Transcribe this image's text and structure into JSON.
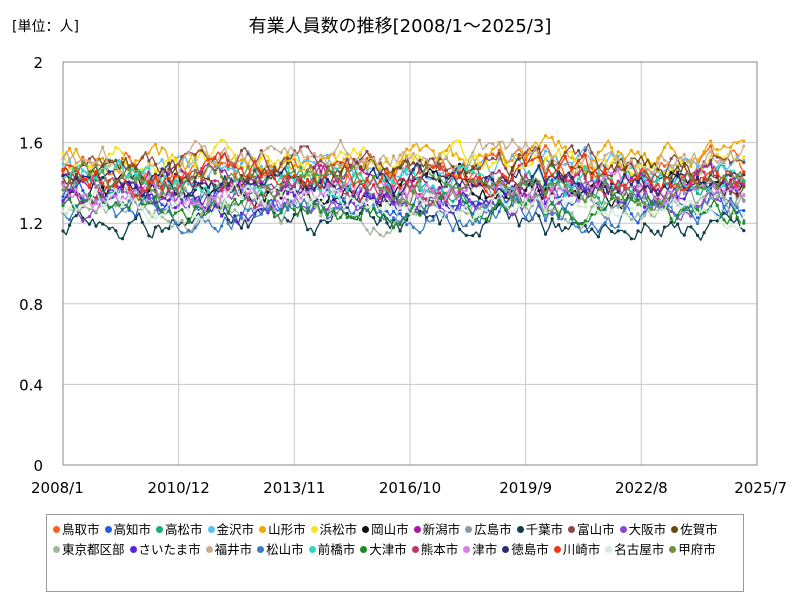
{
  "chart_data": {
    "type": "line",
    "title": "有業人員数の推移[2008/1～2025/3]",
    "unit_label": "[単位：人]",
    "ylim": [
      0,
      2
    ],
    "y_ticks": [
      "0",
      "0.4",
      "0.8",
      "1.2",
      "1.6",
      "2"
    ],
    "x_tick_labels": [
      "2008/1",
      "2010/12",
      "2013/11",
      "2016/10",
      "2019/9",
      "2022/8",
      "2025/7"
    ],
    "x_range": [
      "2008-01",
      "2025-07"
    ],
    "data_range": [
      "2008-01",
      "2025-03"
    ],
    "frequency": "monthly",
    "grid": true,
    "legend_position": "bottom",
    "series": [
      {
        "name": "鳥取市",
        "color": "#ff5e1a",
        "level": 1.46,
        "vol": 0.09
      },
      {
        "name": "高知市",
        "color": "#1f5fe0",
        "level": 1.33,
        "vol": 0.1
      },
      {
        "name": "高松市",
        "color": "#12b07a",
        "level": 1.38,
        "vol": 0.08
      },
      {
        "name": "金沢市",
        "color": "#5bc0ee",
        "level": 1.48,
        "vol": 0.11
      },
      {
        "name": "山形市",
        "color": "#f0a800",
        "level": 1.5,
        "vol": 0.1
      },
      {
        "name": "浜松市",
        "color": "#f5e21b",
        "level": 1.52,
        "vol": 0.1
      },
      {
        "name": "岡山市",
        "color": "#111111",
        "level": 1.36,
        "vol": 0.12
      },
      {
        "name": "新潟市",
        "color": "#a31aa8",
        "level": 1.4,
        "vol": 0.09
      },
      {
        "name": "広島市",
        "color": "#8e99a6",
        "level": 1.34,
        "vol": 0.09
      },
      {
        "name": "千葉市",
        "color": "#0e3e4a",
        "level": 1.2,
        "vol": 0.11
      },
      {
        "name": "富山市",
        "color": "#8b4a4a",
        "level": 1.5,
        "vol": 0.11
      },
      {
        "name": "大阪市",
        "color": "#8e44c8",
        "level": 1.33,
        "vol": 0.08
      },
      {
        "name": "佐賀市",
        "color": "#6a4a10",
        "level": 1.45,
        "vol": 0.09
      },
      {
        "name": "東京都区部",
        "color": "#9fb89a",
        "level": 1.27,
        "vol": 0.07
      },
      {
        "name": "さいたま市",
        "color": "#5a24d6",
        "level": 1.32,
        "vol": 0.09
      },
      {
        "name": "福井市",
        "color": "#c9ad8e",
        "level": 1.52,
        "vol": 0.1
      },
      {
        "name": "松山市",
        "color": "#3b7cc4",
        "level": 1.25,
        "vol": 0.1
      },
      {
        "name": "前橋市",
        "color": "#25ddc0",
        "level": 1.42,
        "vol": 0.1
      },
      {
        "name": "大津市",
        "color": "#1a8c28",
        "level": 1.27,
        "vol": 0.11
      },
      {
        "name": "熊本市",
        "color": "#c0356e",
        "level": 1.38,
        "vol": 0.09
      },
      {
        "name": "津市",
        "color": "#d680e6",
        "level": 1.36,
        "vol": 0.1
      },
      {
        "name": "徳島市",
        "color": "#2c2c76",
        "level": 1.4,
        "vol": 0.1
      },
      {
        "name": "川崎市",
        "color": "#ee3a14",
        "level": 1.42,
        "vol": 0.09
      },
      {
        "name": "名古屋市",
        "color": "#d4eed4",
        "level": 1.3,
        "vol": 0.07
      },
      {
        "name": "甲府市",
        "color": "#6b9140",
        "level": 1.4,
        "vol": 0.1
      }
    ]
  }
}
